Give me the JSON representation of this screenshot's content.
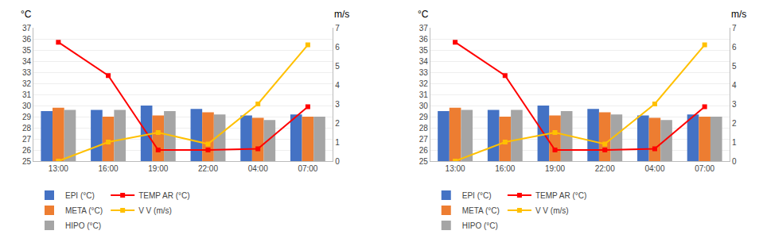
{
  "chart_data": [
    {
      "type": "bar",
      "categories": [
        "13:00",
        "16:00",
        "19:00",
        "22:00",
        "04:00",
        "07:00"
      ],
      "series": [
        {
          "name": "EPI (°C)",
          "color": "#4472C4",
          "values": [
            29.5,
            29.6,
            30.0,
            29.7,
            29.1,
            29.2
          ]
        },
        {
          "name": "META (°C)",
          "color": "#ED7D31",
          "values": [
            29.8,
            29.0,
            29.1,
            29.4,
            28.9,
            29.0
          ]
        },
        {
          "name": "HIPO (°C)",
          "color": "#A5A5A5",
          "values": [
            29.6,
            29.6,
            29.5,
            29.2,
            28.7,
            29.0
          ]
        },
        {
          "name": "TEMP AR (°C)",
          "type": "line",
          "marker": "square",
          "color": "#FF0000",
          "values": [
            35.7,
            32.7,
            26.0,
            26.0,
            26.1,
            29.9
          ]
        },
        {
          "name": "V V (m/s)",
          "type": "line",
          "marker": "square",
          "color": "#FFC000",
          "axis": "y2",
          "values": [
            0.0,
            1.0,
            1.5,
            0.9,
            3.0,
            6.1
          ]
        }
      ],
      "ylim": [
        25,
        37
      ],
      "yticks": [
        25,
        26,
        27,
        28,
        29,
        30,
        31,
        32,
        33,
        34,
        35,
        36,
        37
      ],
      "y2lim": [
        0,
        7
      ],
      "y2ticks": [
        0,
        1,
        2,
        3,
        4,
        5,
        6,
        7
      ],
      "ylabel": "°C",
      "y2label": "m/s",
      "grid": true,
      "legend": "bottom left"
    },
    {
      "type": "bar",
      "categories": [
        "13:00",
        "16:00",
        "19:00",
        "22:00",
        "04:00",
        "07:00"
      ],
      "series": [
        {
          "name": "EPI (°C)",
          "color": "#4472C4",
          "values": [
            29.5,
            29.6,
            30.0,
            29.7,
            29.1,
            29.2
          ]
        },
        {
          "name": "META (°C)",
          "color": "#ED7D31",
          "values": [
            29.8,
            29.0,
            29.1,
            29.4,
            28.9,
            29.0
          ]
        },
        {
          "name": "HIPO (°C)",
          "color": "#A5A5A5",
          "values": [
            29.6,
            29.6,
            29.5,
            29.2,
            28.7,
            29.0
          ]
        },
        {
          "name": "TEMP AR (°C)",
          "type": "line",
          "marker": "square",
          "color": "#FF0000",
          "values": [
            35.7,
            32.7,
            26.0,
            26.0,
            26.1,
            29.9
          ]
        },
        {
          "name": "V V (m/s)",
          "type": "line",
          "marker": "square",
          "color": "#FFC000",
          "axis": "y2",
          "values": [
            0.0,
            1.0,
            1.5,
            0.9,
            3.0,
            6.1
          ]
        }
      ],
      "ylim": [
        25,
        37
      ],
      "yticks": [
        25,
        26,
        27,
        28,
        29,
        30,
        31,
        32,
        33,
        34,
        35,
        36,
        37
      ],
      "y2lim": [
        0,
        7
      ],
      "y2ticks": [
        0,
        1,
        2,
        3,
        4,
        5,
        6,
        7
      ],
      "ylabel": "°C",
      "y2label": "m/s",
      "grid": true,
      "legend": "bottom left"
    }
  ]
}
